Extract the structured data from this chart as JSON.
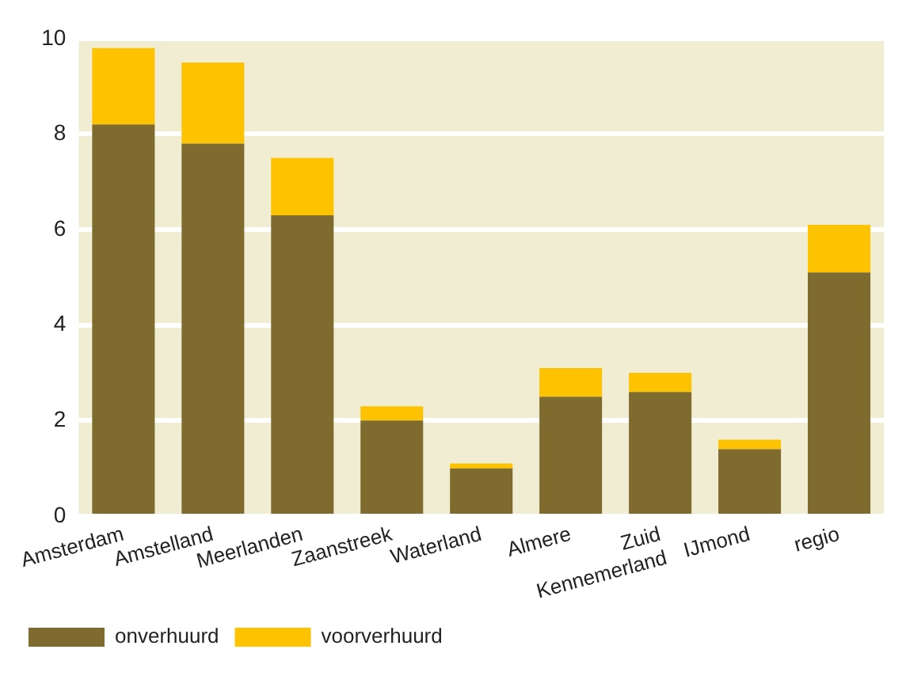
{
  "chart_data": {
    "type": "bar",
    "stacked": true,
    "categories": [
      "Amsterdam",
      "Amstelland",
      "Meerlanden",
      "Zaanstreek",
      "Waterland",
      "Almere",
      "Zuid Kennemerland",
      "IJmond",
      "regio"
    ],
    "series": [
      {
        "name": "onverhuurd",
        "color": "#7f6b2e",
        "values": [
          8.2,
          7.8,
          6.3,
          2.0,
          1.0,
          2.5,
          2.6,
          1.4,
          5.1
        ]
      },
      {
        "name": "voorverhuurd",
        "color": "#fdc300",
        "values": [
          1.6,
          1.7,
          1.2,
          0.3,
          0.1,
          0.6,
          0.4,
          0.2,
          1.0
        ]
      }
    ],
    "ylim": [
      0,
      10
    ],
    "yticks": [
      0,
      2,
      4,
      6,
      8,
      10
    ],
    "grid": "y",
    "legend": "bottom left"
  }
}
